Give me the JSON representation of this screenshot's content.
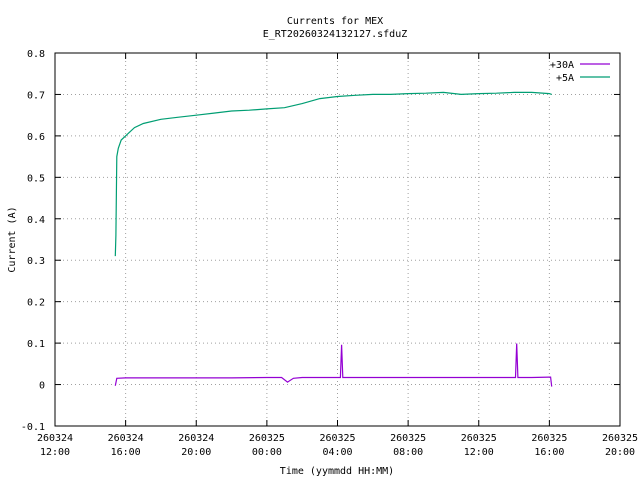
{
  "chart_data": {
    "type": "line",
    "title": "Currents for MEX",
    "subtitle": "E_RT20260324132127.sfduZ",
    "xlabel": "Time (yymmdd HH:MM)",
    "ylabel": "Current (A)",
    "xlim": [
      "2026-03-24 12:00",
      "2026-03-25 20:00"
    ],
    "ylim": [
      -0.1,
      0.8
    ],
    "grid": true,
    "legend_position": "top-right",
    "x_ticks": [
      {
        "date": "260324",
        "time": "12:00"
      },
      {
        "date": "260324",
        "time": "16:00"
      },
      {
        "date": "260324",
        "time": "20:00"
      },
      {
        "date": "260325",
        "time": "00:00"
      },
      {
        "date": "260325",
        "time": "04:00"
      },
      {
        "date": "260325",
        "time": "08:00"
      },
      {
        "date": "260325",
        "time": "12:00"
      },
      {
        "date": "260325",
        "time": "16:00"
      },
      {
        "date": "260325",
        "time": "20:00"
      }
    ],
    "y_ticks": [
      "-0.1",
      "0",
      "0.1",
      "0.2",
      "0.3",
      "0.4",
      "0.5",
      "0.6",
      "0.7",
      "0.8"
    ],
    "series": [
      {
        "name": "+30A",
        "color": "#9400d3",
        "x": [
          "2026-03-24 15:25",
          "2026-03-24 15:30",
          "2026-03-24 16:00",
          "2026-03-24 18:00",
          "2026-03-24 20:00",
          "2026-03-24 22:00",
          "2026-03-25 00:00",
          "2026-03-25 00:50",
          "2026-03-25 01:10",
          "2026-03-25 01:30",
          "2026-03-25 02:00",
          "2026-03-25 04:00",
          "2026-03-25 04:10",
          "2026-03-25 04:14",
          "2026-03-25 04:18",
          "2026-03-25 04:25",
          "2026-03-25 06:00",
          "2026-03-25 08:00",
          "2026-03-25 10:00",
          "2026-03-25 12:00",
          "2026-03-25 14:00",
          "2026-03-25 14:05",
          "2026-03-25 14:09",
          "2026-03-25 14:13",
          "2026-03-25 14:20",
          "2026-03-25 15:00",
          "2026-03-25 16:00",
          "2026-03-25 16:04",
          "2026-03-25 16:08"
        ],
        "values": [
          -0.003,
          0.015,
          0.016,
          0.016,
          0.016,
          0.016,
          0.017,
          0.017,
          0.006,
          0.015,
          0.017,
          0.017,
          0.017,
          0.096,
          0.017,
          0.017,
          0.017,
          0.017,
          0.017,
          0.017,
          0.017,
          0.017,
          0.099,
          0.017,
          0.017,
          0.017,
          0.018,
          0.018,
          -0.005
        ]
      },
      {
        "name": "+5A",
        "color": "#009e73",
        "x": [
          "2026-03-24 15:25",
          "2026-03-24 15:27",
          "2026-03-24 15:30",
          "2026-03-24 15:35",
          "2026-03-24 15:45",
          "2026-03-24 16:00",
          "2026-03-24 16:30",
          "2026-03-24 17:00",
          "2026-03-24 18:00",
          "2026-03-24 19:00",
          "2026-03-24 20:00",
          "2026-03-24 21:00",
          "2026-03-24 22:00",
          "2026-03-24 23:00",
          "2026-03-25 00:00",
          "2026-03-25 01:00",
          "2026-03-25 02:00",
          "2026-03-25 03:00",
          "2026-03-25 04:00",
          "2026-03-25 05:00",
          "2026-03-25 06:00",
          "2026-03-25 07:00",
          "2026-03-25 08:00",
          "2026-03-25 09:00",
          "2026-03-25 10:00",
          "2026-03-25 11:00",
          "2026-03-25 12:00",
          "2026-03-25 13:00",
          "2026-03-25 14:00",
          "2026-03-25 15:00",
          "2026-03-25 16:00",
          "2026-03-25 16:08"
        ],
        "values": [
          0.31,
          0.36,
          0.55,
          0.57,
          0.59,
          0.6,
          0.62,
          0.63,
          0.64,
          0.645,
          0.65,
          0.655,
          0.66,
          0.662,
          0.665,
          0.668,
          0.678,
          0.69,
          0.695,
          0.698,
          0.7,
          0.7,
          0.702,
          0.703,
          0.705,
          0.7,
          0.702,
          0.703,
          0.705,
          0.705,
          0.702,
          0.7
        ]
      }
    ]
  }
}
